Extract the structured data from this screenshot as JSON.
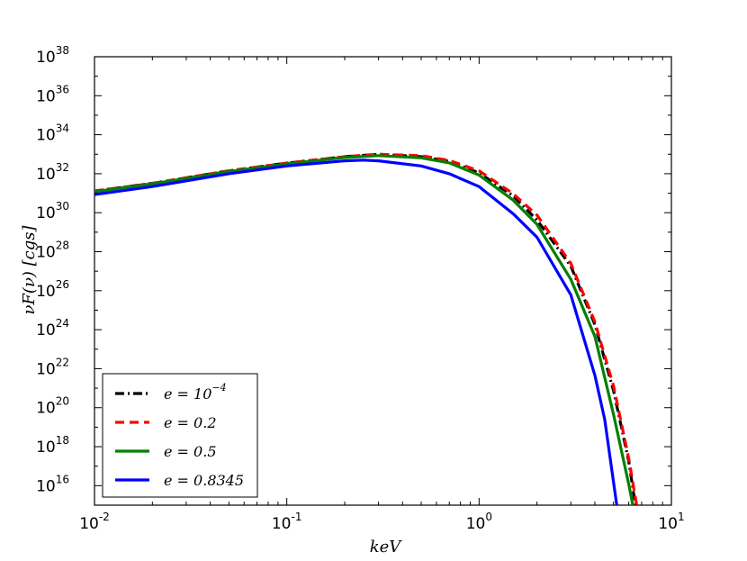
{
  "chart_data": {
    "type": "line",
    "title": "",
    "xlabel": "keV",
    "ylabel": "νF(ν) [cgs]",
    "xscale": "log",
    "yscale": "log",
    "xlim": [
      0.01,
      10
    ],
    "ylim": [
      1000000000000000.0,
      1e+38
    ],
    "x_ticks": [
      {
        "base": "10",
        "exp": "-2",
        "value": 0.01
      },
      {
        "base": "10",
        "exp": "-1",
        "value": 0.1
      },
      {
        "base": "10",
        "exp": "0",
        "value": 1
      },
      {
        "base": "10",
        "exp": "1",
        "value": 10
      }
    ],
    "y_ticks": [
      {
        "base": "10",
        "exp": "16",
        "value": 1e+16
      },
      {
        "base": "10",
        "exp": "18",
        "value": 1e+18
      },
      {
        "base": "10",
        "exp": "20",
        "value": 1e+20
      },
      {
        "base": "10",
        "exp": "22",
        "value": 1e+22
      },
      {
        "base": "10",
        "exp": "24",
        "value": 1e+24
      },
      {
        "base": "10",
        "exp": "26",
        "value": 1e+26
      },
      {
        "base": "10",
        "exp": "28",
        "value": 1e+28
      },
      {
        "base": "10",
        "exp": "30",
        "value": 1e+30
      },
      {
        "base": "10",
        "exp": "32",
        "value": 1e+32
      },
      {
        "base": "10",
        "exp": "34",
        "value": 1e+34
      },
      {
        "base": "10",
        "exp": "36",
        "value": 1e+36
      },
      {
        "base": "10",
        "exp": "38",
        "value": 1e+38
      }
    ],
    "grid": false,
    "legend_position": "lower-left",
    "series": [
      {
        "name": "e = 10^-4",
        "legend_main": "e = 10",
        "legend_sup": "−4",
        "color": "#000000",
        "style": "dashdot",
        "x": [
          0.01,
          0.02,
          0.05,
          0.1,
          0.2,
          0.3,
          0.5,
          0.7,
          1.0,
          1.5,
          2.0,
          3.0,
          4.0,
          5.0,
          6.0,
          6.5
        ],
        "y": [
          1.3e+31,
          3.2e+31,
          1.4e+32,
          3.5e+32,
          7.5e+32,
          1e+33,
          7.5e+32,
          4.3e+32,
          1.1e+32,
          7.5e+30,
          4.2e+29,
          1.8e+27,
          1.8e+24,
          7.5e+20,
          1.8e+17,
          1000000000000000.0
        ]
      },
      {
        "name": "e = 0.2",
        "legend_main": "e = 0.2",
        "legend_sup": "",
        "color": "#ff0000",
        "style": "dashed",
        "x": [
          0.01,
          0.02,
          0.05,
          0.1,
          0.2,
          0.3,
          0.5,
          0.7,
          1.0,
          1.5,
          2.0,
          3.0,
          4.0,
          5.0,
          6.0,
          6.6
        ],
        "y": [
          1.3e+31,
          3.2e+31,
          1.4e+32,
          3.5e+32,
          7.5e+32,
          1e+33,
          8.5e+32,
          4.8e+32,
          1.4e+32,
          9.5e+30,
          7.5e+29,
          2.5e+27,
          2.5e+24,
          1.3e+21,
          2.5e+17,
          1000000000000000.0
        ]
      },
      {
        "name": "e = 0.5",
        "legend_main": "e = 0.5",
        "legend_sup": "",
        "color": "#008000",
        "style": "solid",
        "x": [
          0.01,
          0.02,
          0.05,
          0.1,
          0.2,
          0.3,
          0.5,
          0.7,
          1.0,
          1.5,
          2.0,
          3.0,
          4.0,
          5.0,
          6.0,
          6.3
        ],
        "y": [
          1.2e+31,
          3e+31,
          1.3e+32,
          3.2e+32,
          6.8e+32,
          8.5e+32,
          6.5e+32,
          3.6e+32,
          8.5e+31,
          4.5e+30,
          2.5e+29,
          3.8e+26,
          4.5e+23,
          4.5e+19,
          1.2e+16,
          1000000000000000.0
        ]
      },
      {
        "name": "e = 0.8345",
        "legend_main": "e = 0.8345",
        "legend_sup": "",
        "color": "#0000ff",
        "style": "solid",
        "x": [
          0.01,
          0.02,
          0.05,
          0.1,
          0.2,
          0.25,
          0.3,
          0.5,
          0.7,
          1.0,
          1.5,
          2.0,
          3.0,
          4.0,
          4.5,
          5.2
        ],
        "y": [
          8.5e+30,
          2.2e+31,
          1e+32,
          2.5e+32,
          4.6e+32,
          5e+32,
          4.6e+32,
          2.5e+32,
          1e+32,
          2.2e+31,
          9e+29,
          5.5e+28,
          6e+25,
          4.5e+21,
          2.5e+19,
          1000000000000000.0
        ]
      }
    ]
  }
}
